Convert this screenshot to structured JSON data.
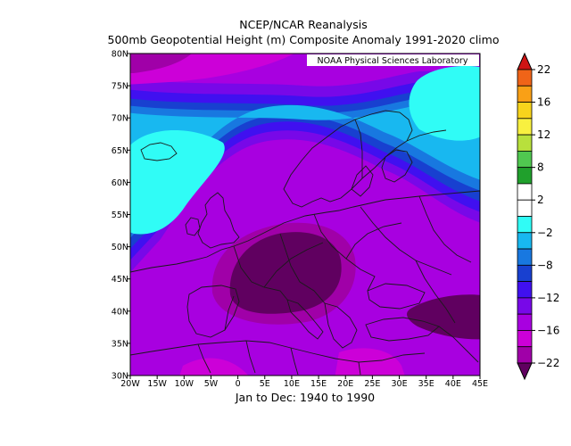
{
  "header": {
    "title": "NCEP/NCAR Reanalysis",
    "subtitle": "500mb Geopotential Height (m) Composite Anomaly 1991-2020 climo"
  },
  "credit": "NOAA Physical Sciences Laboratory",
  "footer": "Jan to Dec: 1940 to 1990",
  "map": {
    "variable": "500mb geopotential height anomaly",
    "units": "m",
    "lon_range": [
      -20,
      45
    ],
    "lat_range": [
      30,
      80
    ],
    "lon_ticks": [
      "20W",
      "15W",
      "10W",
      "5W",
      "0",
      "5E",
      "10E",
      "15E",
      "20E",
      "25E",
      "30E",
      "35E",
      "40E",
      "45E"
    ],
    "lat_ticks": [
      "30N",
      "35N",
      "40N",
      "45N",
      "50N",
      "55N",
      "60N",
      "65N",
      "70N",
      "75N",
      "80N"
    ]
  },
  "colorbar": {
    "labels": [
      "22",
      "16",
      "12",
      "8",
      "2",
      "-2",
      "-8",
      "-12",
      "-16",
      "-22"
    ],
    "colors": [
      "#d01414",
      "#f06418",
      "#f9a016",
      "#f8d41c",
      "#f8f040",
      "#b8e03c",
      "#50c850",
      "#20a02c",
      "#ffffff",
      "#ffffff",
      "#30fcf6",
      "#18b8f0",
      "#1878e0",
      "#1840d0",
      "#4010f0",
      "#7808e8",
      "#a800e0",
      "#cc00d8",
      "#a000a8",
      "#600060"
    ]
  }
}
